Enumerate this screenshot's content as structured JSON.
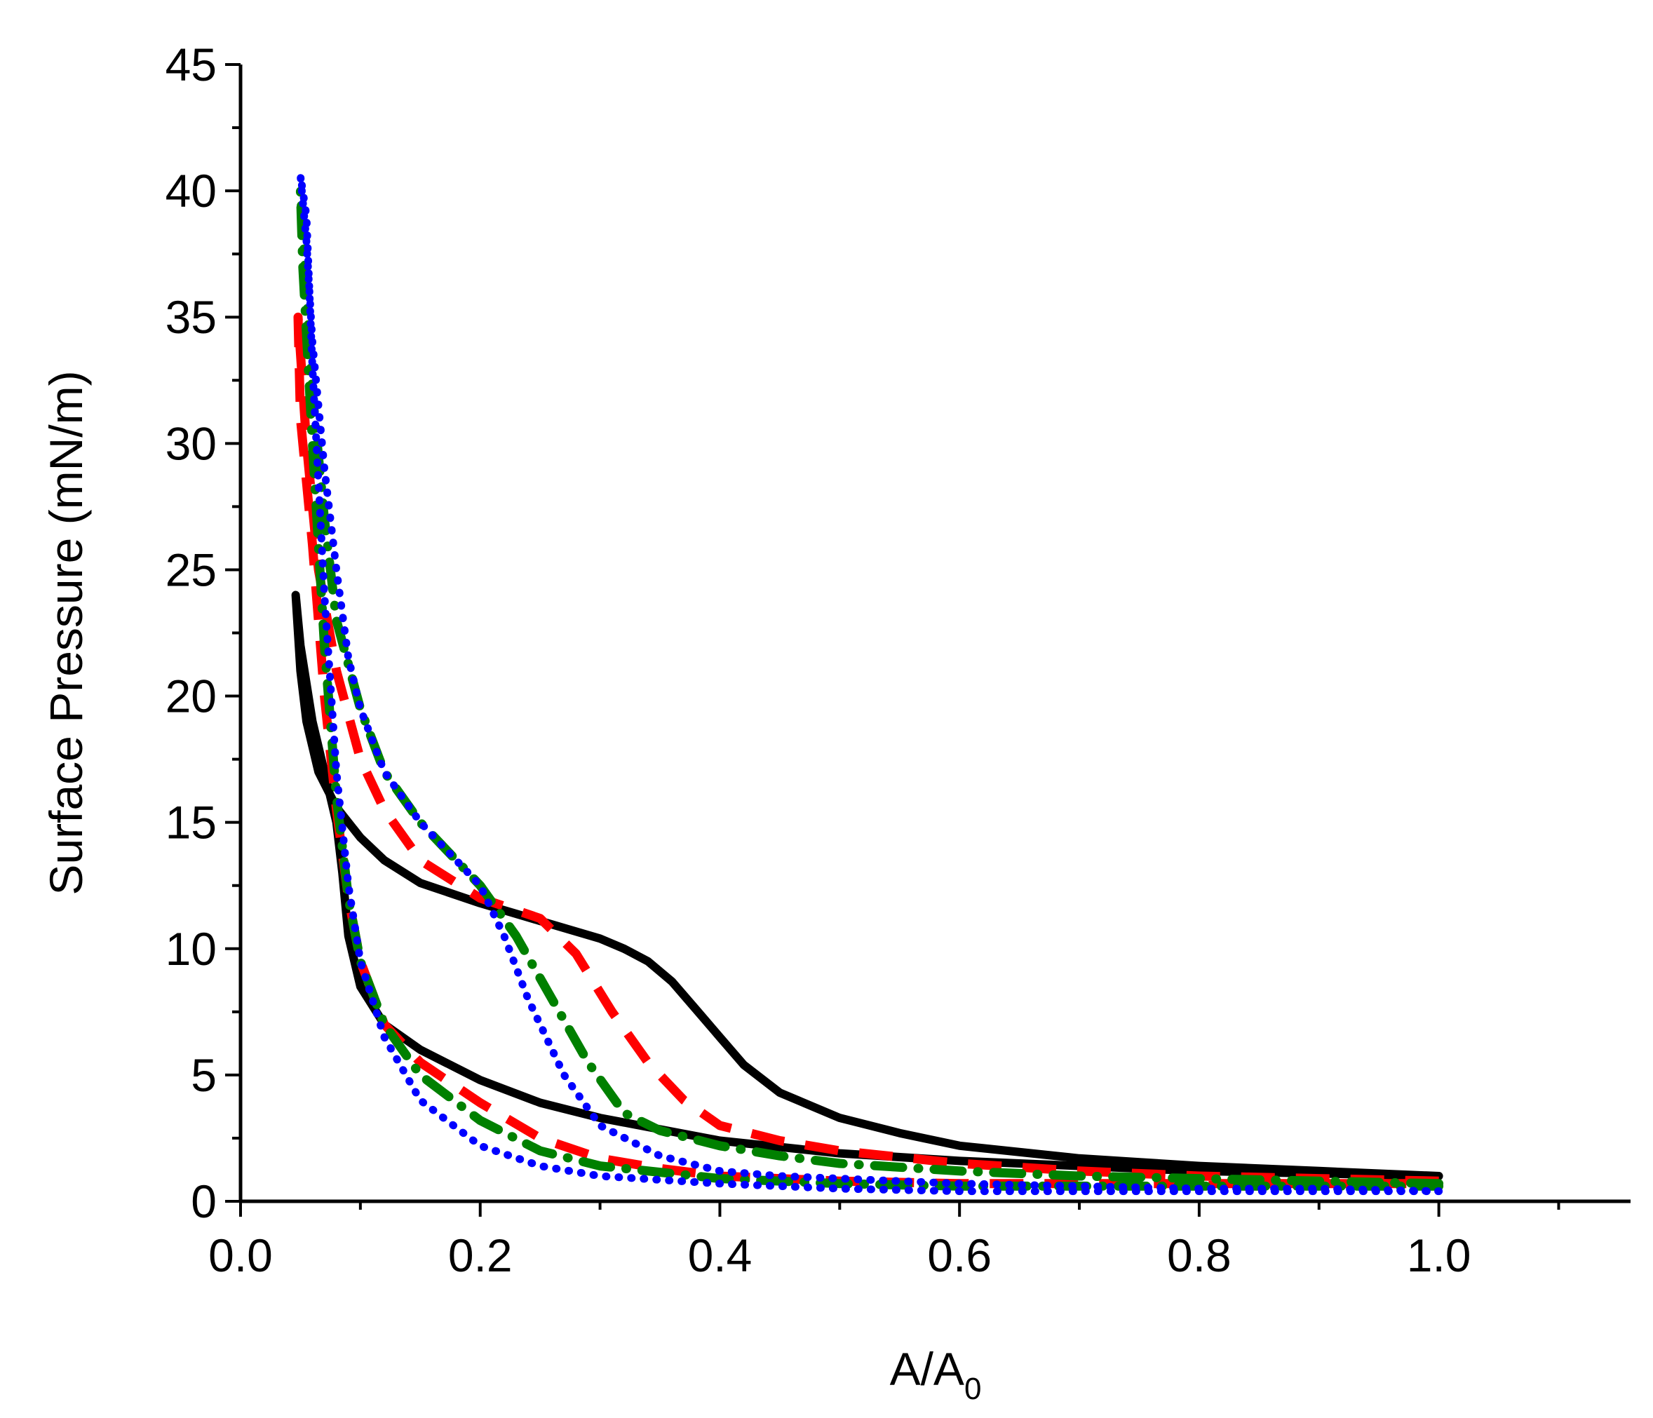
{
  "chart_data": {
    "type": "line",
    "title": "",
    "xlabel": "A/A",
    "xlabel_subscript": "0",
    "ylabel": "Surface Pressure (mN/m)",
    "xlim": [
      0.0,
      1.16
    ],
    "ylim": [
      0,
      45
    ],
    "x_ticks": [
      0.0,
      0.2,
      0.4,
      0.6,
      0.8,
      1.0
    ],
    "x_tick_labels": [
      "0.0",
      "0.2",
      "0.4",
      "0.6",
      "0.8",
      "1.0"
    ],
    "y_ticks": [
      0,
      5,
      10,
      15,
      20,
      25,
      30,
      35,
      40,
      45
    ],
    "y_tick_labels": [
      "0",
      "5",
      "10",
      "15",
      "20",
      "25",
      "30",
      "35",
      "40",
      "45"
    ],
    "grid": false,
    "legend": "none",
    "series": [
      {
        "style": "solid",
        "color": "#000000",
        "x": [
          1.0,
          0.9,
          0.8,
          0.7,
          0.6,
          0.55,
          0.5,
          0.45,
          0.42,
          0.4,
          0.38,
          0.36,
          0.34,
          0.32,
          0.3,
          0.25,
          0.2,
          0.15,
          0.12,
          0.1,
          0.08,
          0.065,
          0.055,
          0.05,
          0.046,
          0.05,
          0.06,
          0.07,
          0.08,
          0.085,
          0.09,
          0.1,
          0.12,
          0.15,
          0.2,
          0.25,
          0.3,
          0.4,
          0.5,
          0.6,
          0.7,
          0.8,
          0.9,
          1.0
        ],
        "y": [
          1.0,
          1.2,
          1.4,
          1.7,
          2.2,
          2.7,
          3.3,
          4.3,
          5.4,
          6.5,
          7.6,
          8.7,
          9.5,
          10.0,
          10.4,
          11.1,
          11.8,
          12.6,
          13.5,
          14.4,
          15.6,
          17.0,
          19.0,
          21.0,
          24.0,
          22.0,
          19.0,
          17.0,
          15.0,
          13.0,
          10.5,
          8.5,
          7.0,
          6.0,
          4.8,
          3.9,
          3.3,
          2.4,
          1.9,
          1.6,
          1.4,
          1.2,
          1.1,
          1.0
        ]
      },
      {
        "style": "dashed",
        "color": "#ff0000",
        "x": [
          1.0,
          0.9,
          0.8,
          0.7,
          0.6,
          0.5,
          0.45,
          0.4,
          0.37,
          0.34,
          0.31,
          0.28,
          0.25,
          0.2,
          0.15,
          0.12,
          0.1,
          0.08,
          0.065,
          0.055,
          0.048,
          0.05,
          0.06,
          0.07,
          0.08,
          0.09,
          0.1,
          0.12,
          0.15,
          0.2,
          0.25,
          0.3,
          0.35,
          0.4,
          0.5,
          0.6,
          0.7,
          0.8,
          0.9,
          1.0
        ],
        "y": [
          0.8,
          0.9,
          1.0,
          1.2,
          1.5,
          2.0,
          2.4,
          3.0,
          4.0,
          5.5,
          7.5,
          9.8,
          11.2,
          12.0,
          13.5,
          15.5,
          17.5,
          21.0,
          25.0,
          30.0,
          35.0,
          31.0,
          26.0,
          20.0,
          15.5,
          12.0,
          9.5,
          7.0,
          5.5,
          3.9,
          2.5,
          1.7,
          1.3,
          1.0,
          0.8,
          0.7,
          0.7,
          0.7,
          0.7,
          0.7
        ]
      },
      {
        "style": "dash-dot",
        "color": "#008000",
        "x": [
          1.0,
          0.9,
          0.8,
          0.7,
          0.6,
          0.5,
          0.45,
          0.4,
          0.35,
          0.32,
          0.29,
          0.26,
          0.23,
          0.2,
          0.15,
          0.12,
          0.1,
          0.08,
          0.07,
          0.06,
          0.055,
          0.05,
          0.052,
          0.06,
          0.07,
          0.08,
          0.09,
          0.1,
          0.12,
          0.15,
          0.2,
          0.25,
          0.3,
          0.4,
          0.5,
          0.6,
          0.7,
          0.8,
          0.9,
          1.0
        ],
        "y": [
          0.7,
          0.8,
          0.9,
          1.0,
          1.2,
          1.5,
          1.8,
          2.2,
          2.8,
          3.5,
          5.5,
          8.0,
          10.5,
          12.5,
          15.0,
          17.0,
          19.5,
          23.0,
          27.0,
          32.0,
          36.0,
          40.0,
          37.0,
          30.0,
          22.0,
          16.0,
          12.0,
          9.5,
          7.0,
          5.0,
          3.2,
          2.0,
          1.4,
          0.9,
          0.7,
          0.6,
          0.6,
          0.6,
          0.6,
          0.6
        ]
      },
      {
        "style": "dotted",
        "color": "#0000ff",
        "x": [
          1.0,
          0.9,
          0.8,
          0.7,
          0.6,
          0.5,
          0.45,
          0.4,
          0.35,
          0.3,
          0.27,
          0.24,
          0.22,
          0.2,
          0.18,
          0.15,
          0.12,
          0.1,
          0.09,
          0.08,
          0.07,
          0.06,
          0.055,
          0.05,
          0.055,
          0.06,
          0.07,
          0.08,
          0.09,
          0.1,
          0.12,
          0.15,
          0.2,
          0.25,
          0.3,
          0.4,
          0.5,
          0.6,
          0.7,
          0.8,
          0.9,
          1.0
        ],
        "y": [
          0.4,
          0.5,
          0.5,
          0.6,
          0.7,
          0.9,
          1.0,
          1.2,
          1.8,
          3.0,
          5.0,
          8.0,
          10.5,
          12.5,
          13.5,
          15.0,
          17.0,
          19.5,
          21.5,
          25.0,
          29.0,
          34.0,
          38.0,
          40.6,
          39.0,
          33.0,
          24.0,
          17.0,
          12.5,
          9.5,
          6.5,
          4.0,
          2.2,
          1.4,
          1.0,
          0.7,
          0.5,
          0.4,
          0.4,
          0.4,
          0.4,
          0.4
        ]
      }
    ]
  }
}
